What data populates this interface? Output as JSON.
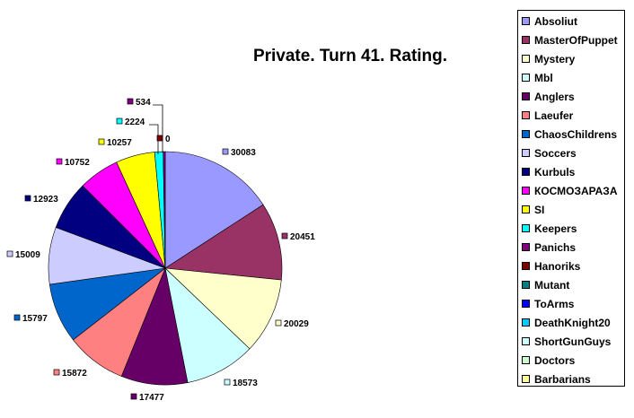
{
  "chart_data": {
    "type": "pie",
    "title": "Private. Turn 41. Rating.",
    "slices": [
      {
        "name": "Absoliut",
        "value": 30083,
        "color": "#9999ff"
      },
      {
        "name": "MasterOfPuppet",
        "value": 20451,
        "color": "#993366"
      },
      {
        "name": "Mystery",
        "value": 20029,
        "color": "#ffffcc"
      },
      {
        "name": "Mbl",
        "value": 18573,
        "color": "#ccffff"
      },
      {
        "name": "Anglers",
        "value": 17477,
        "color": "#660066"
      },
      {
        "name": "Laeufer",
        "value": 15872,
        "color": "#ff8080"
      },
      {
        "name": "ChaosChildrens",
        "value": 15797,
        "color": "#0066cc"
      },
      {
        "name": "Soccers",
        "value": 15009,
        "color": "#ccccff"
      },
      {
        "name": "Kurbuls",
        "value": 12923,
        "color": "#000080"
      },
      {
        "name": "КОСМОЗАРАЗА",
        "value": 10752,
        "color": "#ff00ff"
      },
      {
        "name": "SI",
        "value": 10257,
        "color": "#ffff00"
      },
      {
        "name": "Keepers",
        "value": 2224,
        "color": "#00ffff"
      },
      {
        "name": "Panichs",
        "value": 534,
        "color": "#800080"
      },
      {
        "name": "Hanoriks",
        "value": 0,
        "color": "#800000"
      },
      {
        "name": "Mutant",
        "value": 0,
        "color": "#008080"
      },
      {
        "name": "ToArms",
        "value": 0,
        "color": "#0000ff"
      },
      {
        "name": "DeathKnight20",
        "value": 0,
        "color": "#00ccff"
      },
      {
        "name": "ShortGunGuys",
        "value": 0,
        "color": "#ccffff"
      },
      {
        "name": "Doctors",
        "value": 0,
        "color": "#ccffcc"
      },
      {
        "name": "Barbarians",
        "value": 0,
        "color": "#ffff99"
      }
    ],
    "data_labels": [
      "30083",
      "20451",
      "20029",
      "18573",
      "17477",
      "15872",
      "15797",
      "15009",
      "12923",
      "10752",
      "10257",
      "2224",
      "534",
      "0"
    ],
    "legend_position": "right"
  }
}
